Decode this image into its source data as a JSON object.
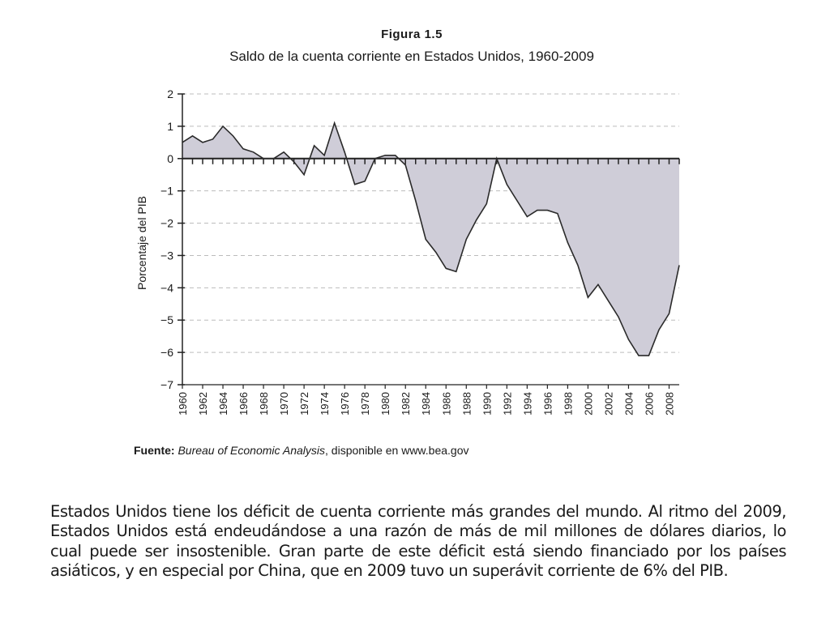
{
  "figure": {
    "label": "Figura 1.5",
    "title": "Saldo de la cuenta corriente en Estados Unidos, 1960-2009"
  },
  "chart_data": {
    "type": "area",
    "title": "Saldo de la cuenta corriente en Estados Unidos, 1960-2009",
    "xlabel": "",
    "ylabel": "Porcentaje del PIB",
    "x": [
      1960,
      1961,
      1962,
      1963,
      1964,
      1965,
      1966,
      1967,
      1968,
      1969,
      1970,
      1971,
      1972,
      1973,
      1974,
      1975,
      1976,
      1977,
      1978,
      1979,
      1980,
      1981,
      1982,
      1983,
      1984,
      1985,
      1986,
      1987,
      1988,
      1989,
      1990,
      1991,
      1992,
      1993,
      1994,
      1995,
      1996,
      1997,
      1998,
      1999,
      2000,
      2001,
      2002,
      2003,
      2004,
      2005,
      2006,
      2007,
      2008,
      2009
    ],
    "values": [
      0.5,
      0.7,
      0.5,
      0.6,
      1.0,
      0.7,
      0.3,
      0.2,
      0.0,
      0.0,
      0.2,
      -0.1,
      -0.5,
      0.4,
      0.1,
      1.1,
      0.2,
      -0.8,
      -0.7,
      0.0,
      0.1,
      0.1,
      -0.2,
      -1.3,
      -2.5,
      -2.9,
      -3.4,
      -3.5,
      -2.5,
      -1.9,
      -1.4,
      0.0,
      -0.8,
      -1.3,
      -1.8,
      -1.6,
      -1.6,
      -1.7,
      -2.6,
      -3.3,
      -4.3,
      -3.9,
      -4.4,
      -4.9,
      -5.6,
      -6.1,
      -6.1,
      -5.3,
      -4.8,
      -3.3
    ],
    "xticks": [
      "1960",
      "1962",
      "1964",
      "1966",
      "1968",
      "1970",
      "1972",
      "1974",
      "1976",
      "1978",
      "1980",
      "1982",
      "1984",
      "1986",
      "1988",
      "1990",
      "1992",
      "1994",
      "1996",
      "1998",
      "2000",
      "2002",
      "2004",
      "2006",
      "2008"
    ],
    "yticks": [
      "2",
      "1",
      "0",
      "−1",
      "−2",
      "−3",
      "−4",
      "−5",
      "−6",
      "−7"
    ],
    "ylim": [
      -7,
      2
    ],
    "xlim": [
      1960,
      2009
    ],
    "grid": "horizontal-dashed",
    "colors": {
      "fill": "#cfcdd8",
      "line": "#2a2a2a",
      "grid": "#bcbcbc"
    }
  },
  "source": {
    "label": "Fuente:",
    "italic": "Bureau of Economic Analysis",
    "rest": ", disponible en www.bea.gov"
  },
  "body": {
    "paragraph": "Estados Unidos tiene los déficit de cuenta corriente más grandes del mundo. Al ritmo del 2009, Estados Unidos está endeudándose a una razón de más de mil millones de dólares diarios, lo cual puede ser insostenible. Gran parte de este déficit está siendo financiado por los países asiáticos, y en especial por China, que en 2009 tuvo un superávit corriente de 6% del PIB."
  }
}
